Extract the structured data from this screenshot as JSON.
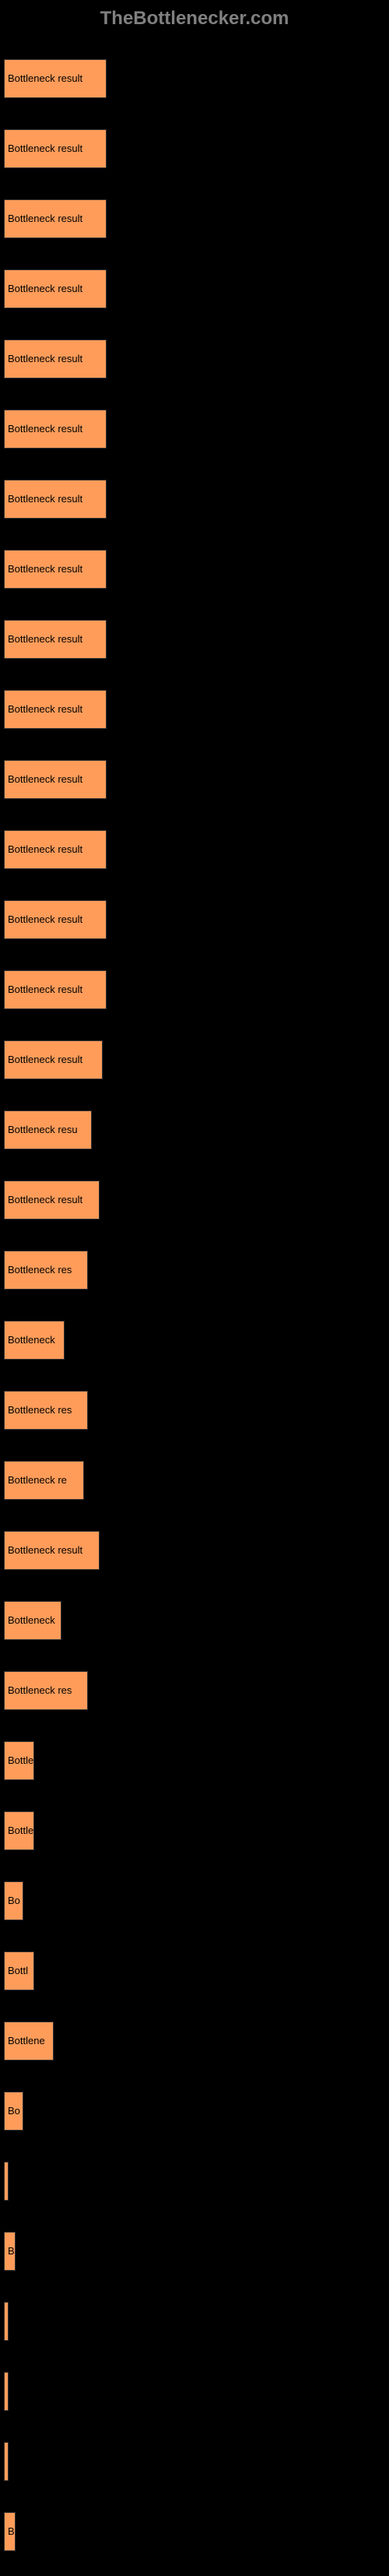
{
  "header": {
    "logo": "TheBottlenecker.com"
  },
  "chart": {
    "type": "bar",
    "background_color": "#000000",
    "bar_color": "#ff9c5a",
    "label_color": "#000000",
    "label_fontsize": 13,
    "max_width": 490,
    "bars": [
      {
        "label": "Bottleneck result",
        "width_percent": 27
      },
      {
        "label": "Bottleneck result",
        "width_percent": 27
      },
      {
        "label": "Bottleneck result",
        "width_percent": 27
      },
      {
        "label": "Bottleneck result",
        "width_percent": 27
      },
      {
        "label": "Bottleneck result",
        "width_percent": 27
      },
      {
        "label": "Bottleneck result",
        "width_percent": 27
      },
      {
        "label": "Bottleneck result",
        "width_percent": 27
      },
      {
        "label": "Bottleneck result",
        "width_percent": 27
      },
      {
        "label": "Bottleneck result",
        "width_percent": 27
      },
      {
        "label": "Bottleneck result",
        "width_percent": 27
      },
      {
        "label": "Bottleneck result",
        "width_percent": 27
      },
      {
        "label": "Bottleneck result",
        "width_percent": 27
      },
      {
        "label": "Bottleneck result",
        "width_percent": 27
      },
      {
        "label": "Bottleneck result",
        "width_percent": 27
      },
      {
        "label": "Bottleneck result",
        "width_percent": 26
      },
      {
        "label": "Bottleneck resu",
        "width_percent": 23
      },
      {
        "label": "Bottleneck result",
        "width_percent": 25
      },
      {
        "label": "Bottleneck res",
        "width_percent": 22
      },
      {
        "label": "Bottleneck",
        "width_percent": 16
      },
      {
        "label": "Bottleneck res",
        "width_percent": 22
      },
      {
        "label": "Bottleneck re",
        "width_percent": 21
      },
      {
        "label": "Bottleneck result",
        "width_percent": 25
      },
      {
        "label": "Bottleneck",
        "width_percent": 15
      },
      {
        "label": "Bottleneck res",
        "width_percent": 22
      },
      {
        "label": "Bottler",
        "width_percent": 8
      },
      {
        "label": "Bottle",
        "width_percent": 8
      },
      {
        "label": "Bo",
        "width_percent": 5
      },
      {
        "label": "Bottl",
        "width_percent": 8
      },
      {
        "label": "Bottlene",
        "width_percent": 13
      },
      {
        "label": "Bo",
        "width_percent": 5
      },
      {
        "label": "",
        "width_percent": 1
      },
      {
        "label": "B",
        "width_percent": 3
      },
      {
        "label": "",
        "width_percent": 0.5
      },
      {
        "label": "",
        "width_percent": 0
      },
      {
        "label": "",
        "width_percent": 0
      },
      {
        "label": "B",
        "width_percent": 3
      }
    ]
  }
}
